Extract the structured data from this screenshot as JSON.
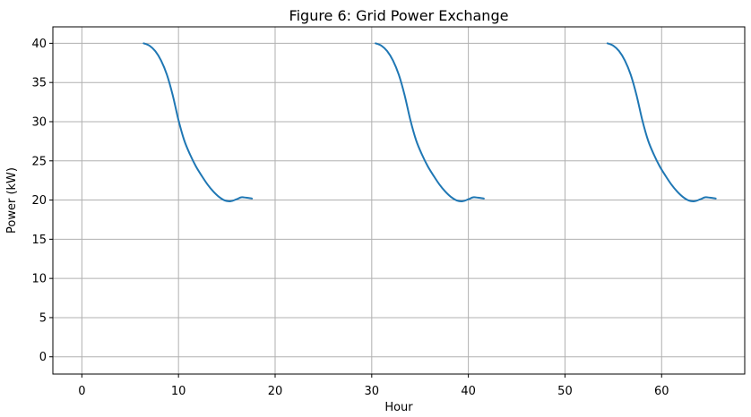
{
  "figure": {
    "title": "Figure 6: Grid Power Exchange"
  },
  "chart_data": {
    "type": "line",
    "title": "Figure 6: Grid Power Exchange",
    "xlabel": "Hour",
    "ylabel": "Power (kW)",
    "xlim": [
      -3.0,
      68.6
    ],
    "ylim": [
      -2.2,
      42.1
    ],
    "xticks": [
      0,
      10,
      20,
      30,
      40,
      50,
      60
    ],
    "yticks": [
      0,
      5,
      10,
      15,
      20,
      25,
      30,
      35,
      40
    ],
    "grid": true,
    "legend_position": "none",
    "colors": {
      "line": "#1f77b4",
      "grid": "#b0b0b0",
      "spine": "#000000",
      "background": "#ffffff",
      "text": "#000000"
    },
    "series": [
      {
        "name": "grid_power",
        "color": "#1f77b4",
        "line_width": 2,
        "segments": [
          [
            [
              6.4,
              40.0
            ],
            [
              7.0,
              39.7
            ],
            [
              7.6,
              39.0
            ],
            [
              8.2,
              37.8
            ],
            [
              8.8,
              36.0
            ],
            [
              9.4,
              33.4
            ],
            [
              10.0,
              30.2
            ],
            [
              10.6,
              27.6
            ],
            [
              11.2,
              25.8
            ],
            [
              11.8,
              24.3
            ],
            [
              12.4,
              23.1
            ],
            [
              13.0,
              22.0
            ],
            [
              13.6,
              21.1
            ],
            [
              14.2,
              20.4
            ],
            [
              14.8,
              19.95
            ],
            [
              15.4,
              19.85
            ],
            [
              16.0,
              20.1
            ],
            [
              16.5,
              20.35
            ],
            [
              17.0,
              20.3
            ],
            [
              17.6,
              20.2
            ]
          ],
          [
            [
              30.4,
              40.0
            ],
            [
              31.0,
              39.7
            ],
            [
              31.6,
              39.0
            ],
            [
              32.2,
              37.8
            ],
            [
              32.8,
              36.0
            ],
            [
              33.4,
              33.4
            ],
            [
              34.0,
              30.2
            ],
            [
              34.6,
              27.6
            ],
            [
              35.2,
              25.8
            ],
            [
              35.8,
              24.3
            ],
            [
              36.4,
              23.1
            ],
            [
              37.0,
              22.0
            ],
            [
              37.6,
              21.1
            ],
            [
              38.2,
              20.4
            ],
            [
              38.8,
              19.95
            ],
            [
              39.4,
              19.85
            ],
            [
              40.0,
              20.1
            ],
            [
              40.5,
              20.35
            ],
            [
              41.0,
              20.3
            ],
            [
              41.6,
              20.2
            ]
          ],
          [
            [
              54.4,
              40.0
            ],
            [
              55.0,
              39.7
            ],
            [
              55.6,
              39.0
            ],
            [
              56.2,
              37.8
            ],
            [
              56.8,
              36.0
            ],
            [
              57.4,
              33.4
            ],
            [
              58.0,
              30.2
            ],
            [
              58.6,
              27.6
            ],
            [
              59.2,
              25.8
            ],
            [
              59.8,
              24.3
            ],
            [
              60.4,
              23.1
            ],
            [
              61.0,
              22.0
            ],
            [
              61.6,
              21.1
            ],
            [
              62.2,
              20.4
            ],
            [
              62.8,
              19.95
            ],
            [
              63.4,
              19.85
            ],
            [
              64.0,
              20.1
            ],
            [
              64.5,
              20.35
            ],
            [
              65.0,
              20.3
            ],
            [
              65.6,
              20.2
            ]
          ]
        ]
      }
    ]
  }
}
